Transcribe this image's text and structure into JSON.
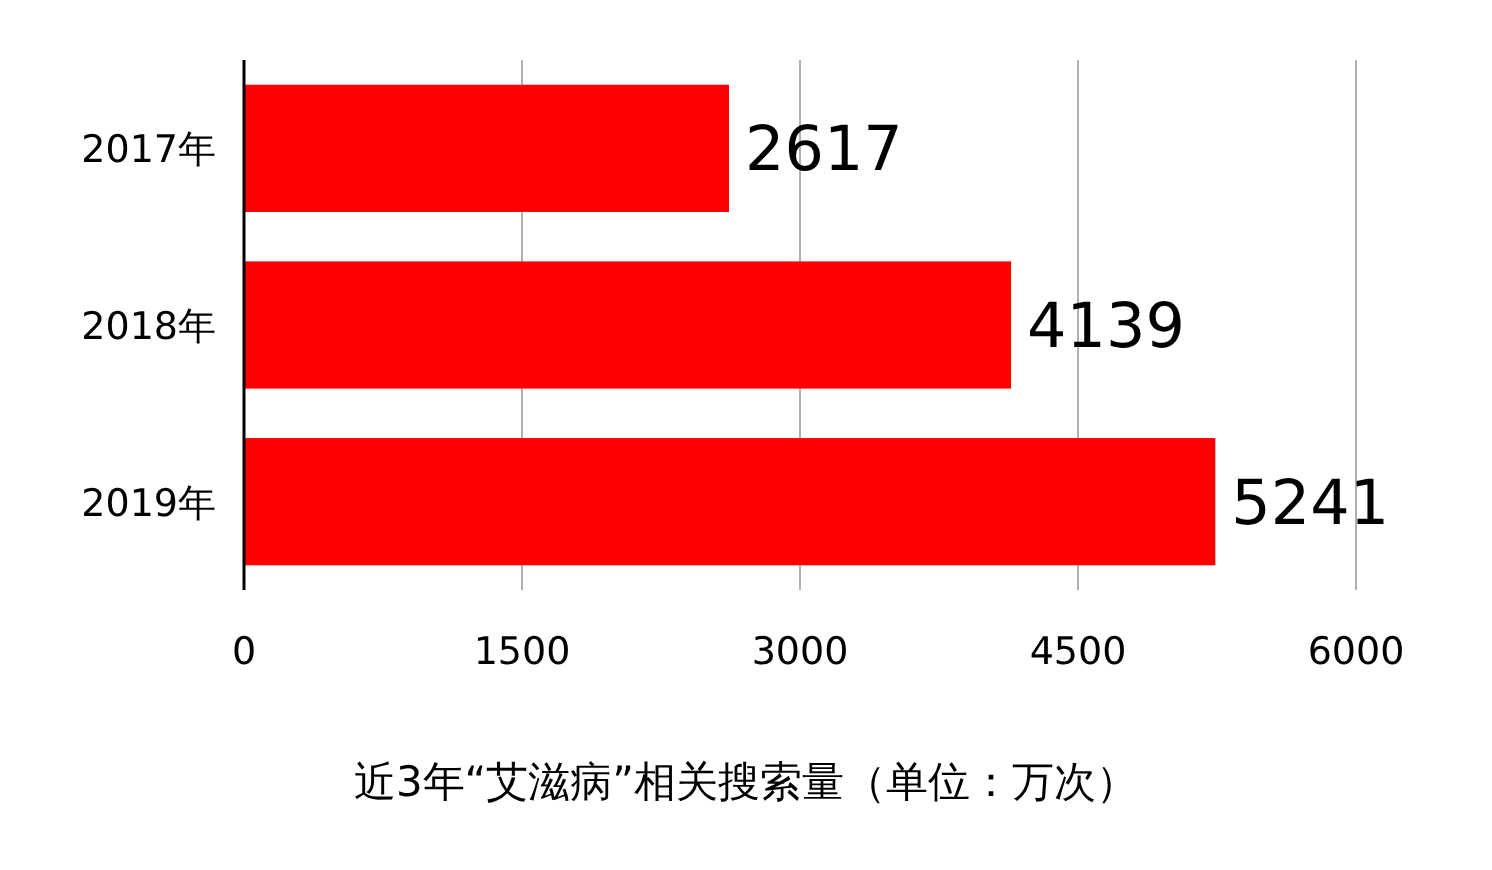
{
  "chart_data": {
    "type": "bar",
    "orientation": "horizontal",
    "title": "近3年“艾滋病”相关搜索量（单位：万次）",
    "categories": [
      "2017年",
      "2018年",
      "2019年"
    ],
    "values": [
      2617,
      4139,
      5241
    ],
    "color": "#ff0000",
    "xlim": [
      0,
      6000
    ],
    "xticks": [
      0,
      1500,
      3000,
      4500,
      6000
    ],
    "grid": "x",
    "data_labels": true
  }
}
